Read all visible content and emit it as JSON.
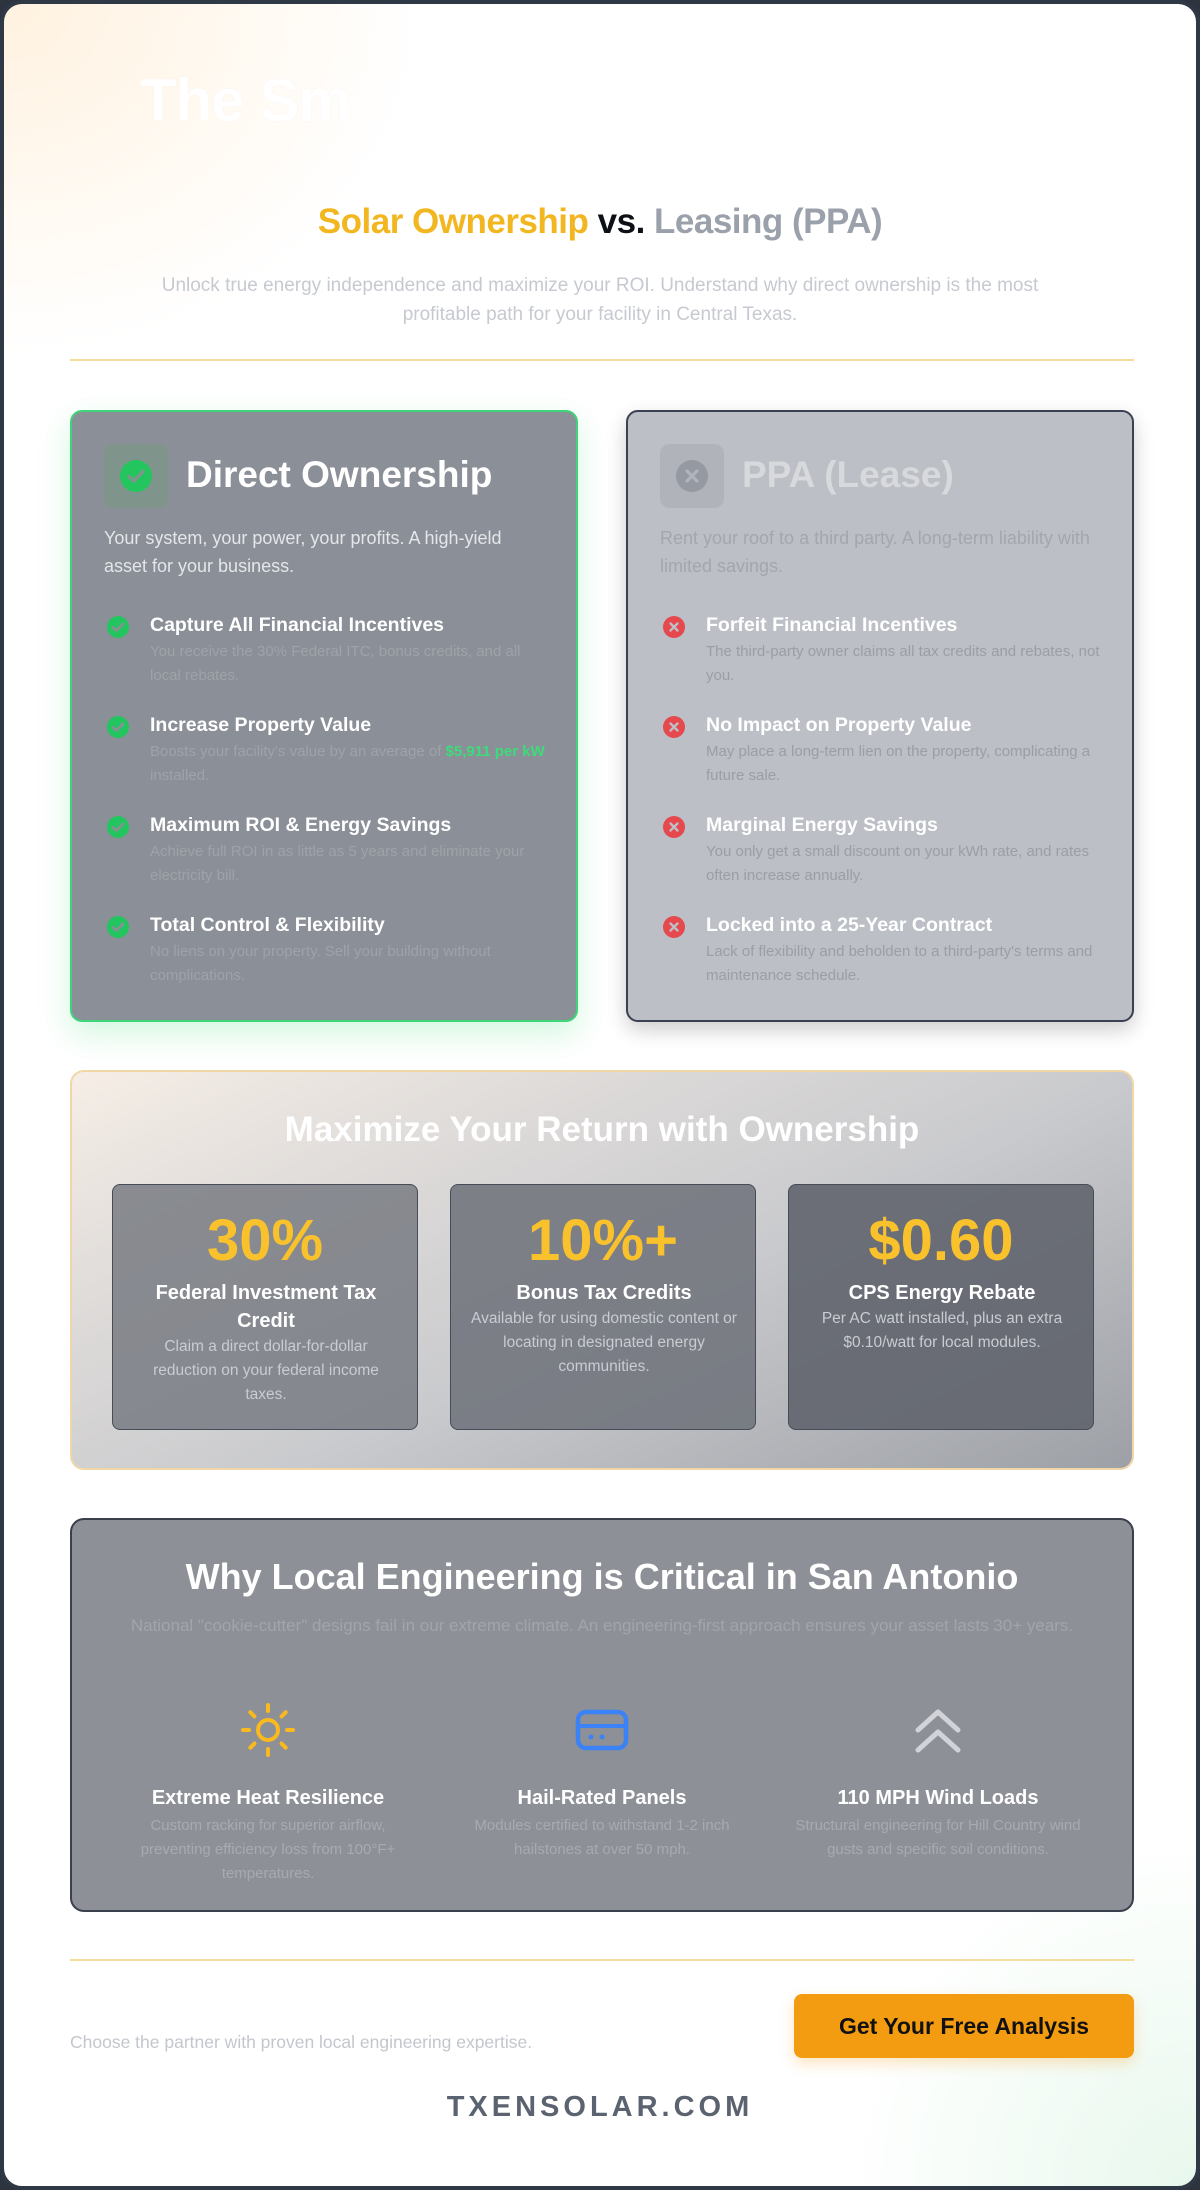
{
  "hero": {
    "ghost_title": "The Sm"
  },
  "header": {
    "title_part1": "Solar Ownership",
    "title_part2": "vs.",
    "title_part3": "Leasing (PPA)",
    "subtitle": "Unlock true energy independence and maximize your ROI. Understand why direct ownership is the most profitable path for your facility in Central Texas."
  },
  "ownership_card": {
    "title": "Direct Ownership",
    "description": "Your system, your power, your profits. A high-yield asset for your business.",
    "features": [
      {
        "title": "Capture All Financial Incentives",
        "desc": "You receive the 30% Federal ITC, bonus credits, and all local rebates."
      },
      {
        "title": "Increase Property Value",
        "desc_pre": "Boosts your facility's value by an average of ",
        "desc_highlight": "$5,911 per kW",
        "desc_post": " installed."
      },
      {
        "title": "Maximum ROI & Energy Savings",
        "desc": "Achieve full ROI in as little as 5 years and eliminate your electricity bill."
      },
      {
        "title": "Total Control & Flexibility",
        "desc": "No liens on your property. Sell your building without complications."
      }
    ]
  },
  "lease_card": {
    "title": "PPA (Lease)",
    "description": "Rent your roof to a third party. A long-term liability with limited savings.",
    "features": [
      {
        "title": "Forfeit Financial Incentives",
        "desc": "The third-party owner claims all tax credits and rebates, not you."
      },
      {
        "title": "No Impact on Property Value",
        "desc": "May place a long-term lien on the property, complicating a future sale."
      },
      {
        "title": "Marginal Energy Savings",
        "desc": "You only get a small discount on your kWh rate, and rates often increase annually."
      },
      {
        "title": "Locked into a 25-Year Contract",
        "desc": "Lack of flexibility and beholden to a third-party's terms and maintenance schedule."
      }
    ]
  },
  "roi": {
    "title": "Maximize Your Return with Ownership",
    "stats": [
      {
        "value": "30%",
        "label": "Federal Investment Tax Credit",
        "desc": "Claim a direct dollar-for-dollar reduction on your federal income taxes."
      },
      {
        "value": "10%+",
        "label": "Bonus Tax Credits",
        "desc": "Available for using domestic content or locating in designated energy communities."
      },
      {
        "value": "$0.60",
        "label": "CPS Energy Rebate",
        "desc": "Per AC watt installed, plus an extra $0.10/watt for local modules."
      }
    ]
  },
  "engineering": {
    "title": "Why Local Engineering is Critical in San Antonio",
    "description": "National \"cookie-cutter\" designs fail in our extreme climate. An engineering-first approach ensures your asset lasts 30+ years.",
    "items": [
      {
        "icon": "sun-icon",
        "title": "Extreme Heat Resilience",
        "desc": "Custom racking for superior airflow, preventing efficiency loss from 100°F+ temperatures."
      },
      {
        "icon": "panel-icon",
        "title": "Hail-Rated Panels",
        "desc": "Modules certified to withstand 1-2 inch hailstones at over 50 mph."
      },
      {
        "icon": "chevrons-up-icon",
        "title": "110 MPH Wind Loads",
        "desc": "Structural engineering for Hill Country wind gusts and specific soil conditions."
      }
    ]
  },
  "footer": {
    "note": "Choose the partner with proven local engineering expertise.",
    "cta_label": "Get Your Free Analysis",
    "brand": "TXENSOLAR.COM"
  },
  "colors": {
    "accent_gold": "#f2b620",
    "cta_orange": "#f39c12",
    "success_green": "#22c55e",
    "danger_red": "#ef4444",
    "engineering_blue": "#3b82f6"
  }
}
